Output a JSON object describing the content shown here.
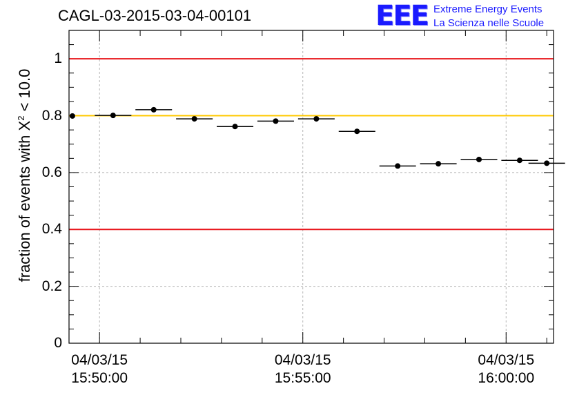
{
  "chart_data": {
    "type": "scatter",
    "title": "CAGL-03-2015-03-04-00101",
    "ylabel": "fraction of events with",
    "ylabel_chi": "X",
    "ylabel_exp": "2",
    "ylabel_cut": "< 10.0",
    "xlabel": "",
    "ylim": [
      0,
      1.1
    ],
    "xlim": [
      "15:49:15",
      "16:01:10"
    ],
    "grid": true,
    "yticks": [
      {
        "value": 0,
        "label": "0"
      },
      {
        "value": 0.2,
        "label": "0.2"
      },
      {
        "value": 0.4,
        "label": "0.4"
      },
      {
        "value": 0.6,
        "label": "0.6"
      },
      {
        "value": 0.8,
        "label": "0.8"
      },
      {
        "value": 1,
        "label": "1"
      }
    ],
    "xticks": [
      {
        "time": "15:50:00",
        "date": "04/03/15",
        "clock": "15:50:00"
      },
      {
        "time": "15:55:00",
        "date": "04/03/15",
        "clock": "15:55:00"
      },
      {
        "time": "16:00:00",
        "date": "04/03/15",
        "clock": "16:00:00"
      }
    ],
    "reference_lines": [
      {
        "y": 1.0,
        "color": "#e8141a"
      },
      {
        "y": 0.8,
        "color": "#ffc800"
      },
      {
        "y": 0.4,
        "color": "#e8141a"
      }
    ],
    "series": [
      {
        "points": [
          {
            "x": "15:49:20",
            "y": 0.799,
            "xerr": 0
          },
          {
            "x": "15:50:20",
            "y": 0.801,
            "xerr": 27
          },
          {
            "x": "15:51:20",
            "y": 0.821,
            "xerr": 27
          },
          {
            "x": "15:52:20",
            "y": 0.789,
            "xerr": 27
          },
          {
            "x": "15:53:20",
            "y": 0.762,
            "xerr": 27
          },
          {
            "x": "15:54:20",
            "y": 0.781,
            "xerr": 27
          },
          {
            "x": "15:55:20",
            "y": 0.789,
            "xerr": 27
          },
          {
            "x": "15:56:20",
            "y": 0.745,
            "xerr": 27
          },
          {
            "x": "15:57:20",
            "y": 0.623,
            "xerr": 27
          },
          {
            "x": "15:58:20",
            "y": 0.631,
            "xerr": 27
          },
          {
            "x": "15:59:20",
            "y": 0.646,
            "xerr": 27
          },
          {
            "x": "16:00:20",
            "y": 0.643,
            "xerr": 27
          },
          {
            "x": "16:01:00",
            "y": 0.633,
            "xerr": 27
          }
        ]
      }
    ]
  },
  "logo": {
    "mark": "EEE",
    "line1": "Extreme Energy Events",
    "line2": "La Scienza nelle Scuole"
  },
  "colors": {
    "marker": "#000000",
    "grid": "#b4b4b4",
    "red_line": "#e8141a",
    "yellow_line": "#ffc800",
    "logo": "#1a1aff"
  }
}
